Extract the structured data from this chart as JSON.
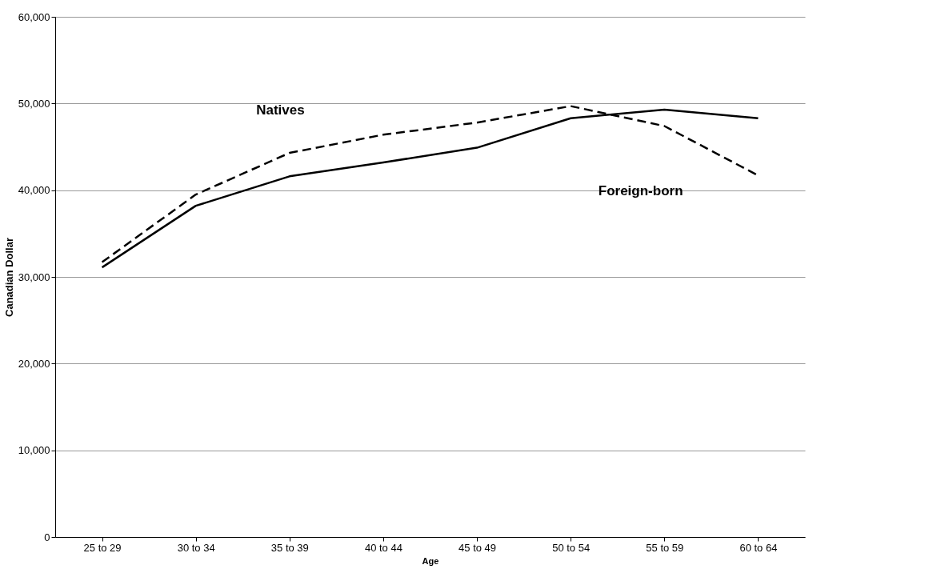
{
  "chart_data": {
    "type": "line",
    "xlabel": "Age",
    "ylabel": "Canadian Dollar",
    "categories": [
      "25 to 29",
      "30 to 34",
      "35 to 39",
      "40 to 44",
      "45 to 49",
      "50 to 54",
      "55 to 59",
      "60 to 64"
    ],
    "series": [
      {
        "color": "#000000",
        "line_style": "solid",
        "values": [
          31100,
          38200,
          41600,
          43200,
          44900,
          48300,
          49300,
          48300
        ]
      },
      {
        "color": "#000000",
        "line_style": "dashed",
        "values": [
          31700,
          39500,
          44300,
          46400,
          47800,
          49700,
          47400,
          41700
        ]
      }
    ],
    "ylim": [
      0,
      60000
    ],
    "yticks": [
      {
        "value": 0,
        "label": "0"
      },
      {
        "value": 10000,
        "label": "10,000"
      },
      {
        "value": 20000,
        "label": "20,000"
      },
      {
        "value": 30000,
        "label": "30,000"
      },
      {
        "value": 40000,
        "label": "40,000"
      },
      {
        "value": 50000,
        "label": "50,000"
      },
      {
        "value": 60000,
        "label": "60,000"
      }
    ],
    "grid": "y",
    "marker": "none",
    "annotations": [
      "Natives",
      "Foreign-born"
    ]
  }
}
